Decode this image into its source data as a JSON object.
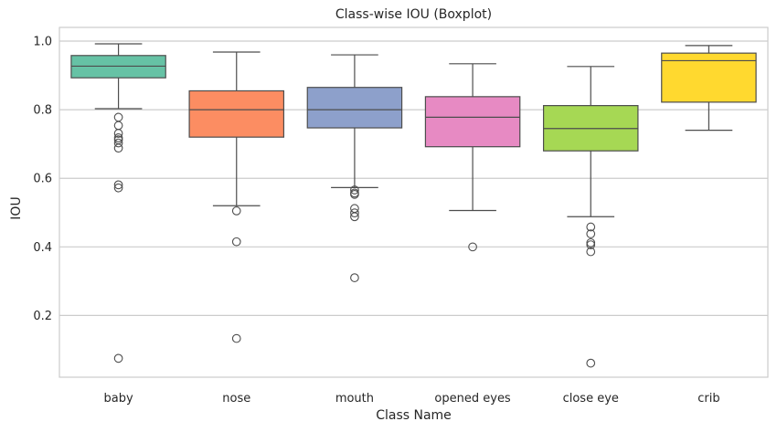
{
  "chart_data": {
    "type": "boxplot",
    "title": "Class-wise IOU (Boxplot)",
    "xlabel": "Class Name",
    "ylabel": "IOU",
    "ylim": [
      0.02,
      1.04
    ],
    "yticks": [
      0.2,
      0.4,
      0.6,
      0.8,
      1.0
    ],
    "ytick_labels": [
      "0.2",
      "0.4",
      "0.6",
      "0.8",
      "1.0"
    ],
    "grid": "horizontal",
    "categories": [
      "baby",
      "nose",
      "mouth",
      "opened eyes",
      "close eye",
      "crib"
    ],
    "boxes": [
      {
        "name": "baby",
        "color": "#66c2a5",
        "whisker_low": 0.803,
        "q1": 0.893,
        "median": 0.927,
        "q3": 0.958,
        "whisker_high": 0.992,
        "outliers": [
          0.778,
          0.754,
          0.731,
          0.718,
          0.712,
          0.703,
          0.688,
          0.581,
          0.572,
          0.075
        ]
      },
      {
        "name": "nose",
        "color": "#fc8d62",
        "whisker_low": 0.52,
        "q1": 0.72,
        "median": 0.8,
        "q3": 0.855,
        "whisker_high": 0.968,
        "outliers": [
          0.505,
          0.415,
          0.133
        ]
      },
      {
        "name": "mouth",
        "color": "#8da0cb",
        "whisker_low": 0.573,
        "q1": 0.747,
        "median": 0.8,
        "q3": 0.865,
        "whisker_high": 0.96,
        "outliers": [
          0.566,
          0.557,
          0.553,
          0.512,
          0.499,
          0.488,
          0.31
        ]
      },
      {
        "name": "opened eyes",
        "color": "#e78ac3",
        "whisker_low": 0.506,
        "q1": 0.692,
        "median": 0.778,
        "q3": 0.838,
        "whisker_high": 0.934,
        "outliers": [
          0.4
        ]
      },
      {
        "name": "close eye",
        "color": "#a6d854",
        "whisker_low": 0.488,
        "q1": 0.68,
        "median": 0.745,
        "q3": 0.812,
        "whisker_high": 0.926,
        "outliers": [
          0.458,
          0.438,
          0.412,
          0.406,
          0.386,
          0.061
        ]
      },
      {
        "name": "crib",
        "color": "#ffd92f",
        "whisker_low": 0.74,
        "q1": 0.822,
        "median": 0.943,
        "q3": 0.965,
        "whisker_high": 0.987,
        "outliers": []
      }
    ]
  }
}
